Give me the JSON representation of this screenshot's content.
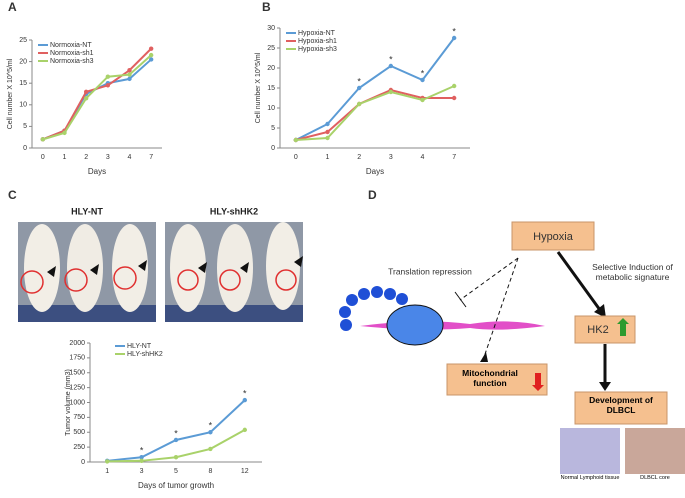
{
  "panels": [
    "A",
    "B",
    "C",
    "D"
  ],
  "chart_data": [
    {
      "type": "line",
      "x_label": "Days",
      "y_label": "Cell number X 10^5/ml",
      "categories": [
        "0",
        "1",
        "2",
        "3",
        "4",
        "7"
      ],
      "ylim": [
        0,
        25
      ],
      "yticks": [
        0,
        5,
        10,
        15,
        20,
        25
      ],
      "series": [
        {
          "name": "Normoxia-NT",
          "color": "#5b9bd5",
          "values": [
            2,
            4,
            12.5,
            15,
            16,
            20.5
          ]
        },
        {
          "name": "Normoxia-sh1",
          "color": "#e06060",
          "values": [
            2,
            4,
            13,
            14.5,
            18,
            23
          ]
        },
        {
          "name": "Normoxia-sh3",
          "color": "#a9d26a",
          "values": [
            2,
            3.5,
            11.5,
            16.5,
            17,
            21.5
          ]
        }
      ]
    },
    {
      "type": "line",
      "x_label": "Days",
      "y_label": "Cell number X 10^5/ml",
      "categories": [
        "0",
        "1",
        "2",
        "3",
        "4",
        "7"
      ],
      "ylim": [
        0,
        30
      ],
      "yticks": [
        0,
        5,
        10,
        15,
        20,
        25,
        30
      ],
      "annotations": [
        null,
        null,
        "*",
        "*",
        "*",
        "*"
      ],
      "series": [
        {
          "name": "Hypoxia-NT",
          "color": "#5b9bd5",
          "values": [
            2,
            6,
            15,
            20.5,
            17,
            27.5
          ]
        },
        {
          "name": "Hypoxia-sh1",
          "color": "#e06060",
          "values": [
            2,
            4,
            11,
            14.5,
            12.5,
            12.5
          ]
        },
        {
          "name": "Hypoxia-sh3",
          "color": "#a9d26a",
          "values": [
            2,
            2.5,
            11,
            14,
            12,
            15.5
          ]
        }
      ]
    },
    {
      "type": "line",
      "x_label": "Days of tumor growth",
      "y_label": "Tumor volume (mm3)",
      "categories": [
        "1",
        "3",
        "5",
        "8",
        "12"
      ],
      "ylim": [
        0,
        2000
      ],
      "yticks": [
        0,
        250,
        500,
        750,
        1000,
        1250,
        1500,
        1750,
        2000
      ],
      "annotations": [
        null,
        "*",
        "*",
        "*",
        "*"
      ],
      "series": [
        {
          "name": "HLY-NT",
          "color": "#5b9bd5",
          "values": [
            20,
            80,
            370,
            500,
            1040
          ]
        },
        {
          "name": "HLY-shHK2",
          "color": "#a9d26a",
          "values": [
            10,
            20,
            80,
            220,
            540
          ]
        }
      ]
    }
  ],
  "photos": [
    "HLY-NT",
    "HLY-shHK2"
  ],
  "diagram": {
    "hypoxia": "Hypoxia",
    "translation": "Translation repression",
    "induction": "Selective Induction of metabolic signature",
    "hk2": "HK2",
    "mito": "Mitochondrial function",
    "dlbcl": "Development of DLBCL",
    "normal": "Normal Lymphoid tissue",
    "core": "DLBCL core"
  }
}
